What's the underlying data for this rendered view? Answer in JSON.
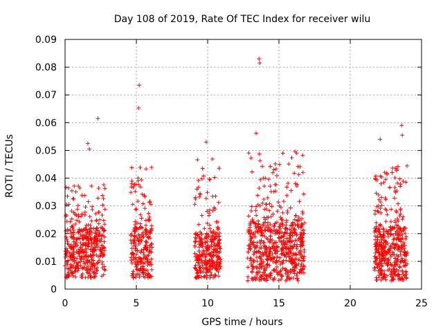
{
  "chart_data": {
    "type": "scatter",
    "title": "Day 108 of 2019, Rate Of TEC Index for receiver wilu",
    "xlabel": "GPS time / hours",
    "ylabel": "ROTI / TECUs",
    "xlim": [
      0,
      25
    ],
    "ylim": [
      0,
      0.09
    ],
    "xticks": [
      0,
      5,
      10,
      15,
      20,
      25
    ],
    "xtick_labels": [
      "0",
      "5",
      "10",
      "15",
      "20",
      "25"
    ],
    "yticks": [
      0,
      0.01,
      0.02,
      0.03,
      0.04,
      0.05,
      0.06,
      0.07,
      0.08,
      0.09
    ],
    "ytick_labels": [
      "0",
      "0.01",
      "0.02",
      "0.03",
      "0.04",
      "0.05",
      "0.06",
      "0.07",
      "0.08",
      "0.09"
    ],
    "grid": true,
    "marker": "+",
    "color": "#ff0000",
    "clusters": [
      {
        "x_range": [
          0.0,
          2.8
        ],
        "n": 420,
        "base_low": 0.004,
        "base_high": 0.022,
        "spread_max": 0.038
      },
      {
        "x_range": [
          4.6,
          6.1
        ],
        "n": 240,
        "base_low": 0.004,
        "base_high": 0.022,
        "spread_max": 0.044
      },
      {
        "x_range": [
          9.1,
          10.9
        ],
        "n": 300,
        "base_low": 0.004,
        "base_high": 0.02,
        "spread_max": 0.048
      },
      {
        "x_range": [
          12.8,
          16.8
        ],
        "n": 620,
        "base_low": 0.003,
        "base_high": 0.024,
        "spread_max": 0.05
      },
      {
        "x_range": [
          21.7,
          24.0
        ],
        "n": 420,
        "base_low": 0.003,
        "base_high": 0.022,
        "spread_max": 0.045
      }
    ],
    "outliers": [
      {
        "x": 2.3,
        "y": 0.0615
      },
      {
        "x": 1.6,
        "y": 0.0525
      },
      {
        "x": 1.7,
        "y": 0.0505
      },
      {
        "x": 5.2,
        "y": 0.0735
      },
      {
        "x": 5.15,
        "y": 0.0653
      },
      {
        "x": 13.6,
        "y": 0.083
      },
      {
        "x": 13.65,
        "y": 0.0815
      },
      {
        "x": 13.4,
        "y": 0.0562
      },
      {
        "x": 23.6,
        "y": 0.059
      },
      {
        "x": 23.65,
        "y": 0.0555
      },
      {
        "x": 22.1,
        "y": 0.054
      },
      {
        "x": 9.9,
        "y": 0.053
      }
    ]
  }
}
